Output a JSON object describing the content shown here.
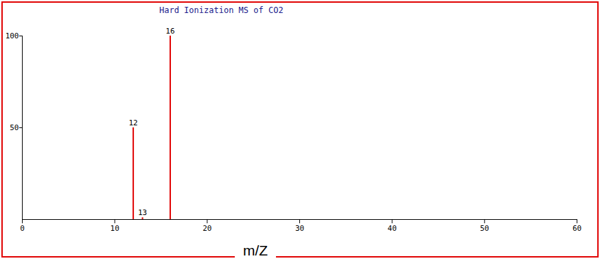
{
  "chart_data": {
    "type": "bar",
    "title": "Hard Ionization MS of CO2",
    "x_label": "m/Z",
    "x": [
      12,
      13,
      16
    ],
    "values": [
      50,
      1,
      100
    ],
    "color": "#e00000",
    "xlim": [
      0,
      60
    ],
    "xticks": [
      0,
      10,
      20,
      30,
      40,
      50,
      60
    ],
    "ylim": [
      0,
      100
    ],
    "yticks": [
      50,
      100
    ]
  }
}
